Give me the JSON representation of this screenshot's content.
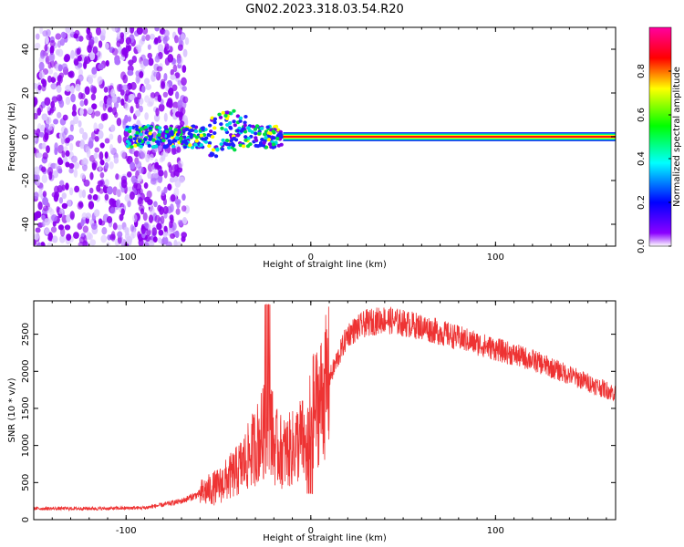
{
  "title": "GN02.2023.318.03.54.R20",
  "chart_data": [
    {
      "type": "heatmap",
      "xlabel": "Height of straight line (km)",
      "ylabel": "Frequency (Hz)",
      "xlim": [
        -150,
        165
      ],
      "ylim": [
        -50,
        50
      ],
      "x_ticks": [
        -100,
        0,
        100
      ],
      "y_ticks": [
        -40,
        -20,
        0,
        20,
        40
      ],
      "colorbar": {
        "label": "Normalized spectral amplitude",
        "range": [
          0,
          1
        ],
        "ticks": [
          "0.0",
          "0.2",
          "0.4",
          "0.6",
          "0.8"
        ],
        "colors": [
          "#ffffff",
          "#8b00ff",
          "#0000ff",
          "#00ffff",
          "#00ff00",
          "#ffff00",
          "#ff0000",
          "#ff00a0"
        ]
      },
      "features": {
        "noise_region_x": [
          -150,
          -75
        ],
        "scatter_region_x": [
          -100,
          -15
        ],
        "tone_start_x": -15,
        "tone_frequency_hz": 0
      }
    },
    {
      "type": "line",
      "xlabel": "Height of straight line (km)",
      "ylabel": "SNR (10 * v/v)",
      "xlim": [
        -150,
        165
      ],
      "ylim": [
        0,
        2950
      ],
      "x_ticks": [
        -100,
        0,
        100
      ],
      "y_ticks": [
        0,
        500,
        1000,
        1500,
        2000,
        2500
      ],
      "line_color": "#ee3333",
      "series": [
        {
          "x": [
            -150,
            -130,
            -110,
            -90,
            -80,
            -70,
            -60,
            -50,
            -45,
            -40,
            -35,
            -30,
            -25,
            -22,
            -20,
            -15,
            -10,
            -5,
            -2,
            0,
            5,
            10,
            15,
            20,
            30,
            40,
            50,
            60,
            80,
            100,
            120,
            140,
            165
          ],
          "values": [
            150,
            150,
            150,
            160,
            200,
            250,
            350,
            450,
            550,
            650,
            800,
            1000,
            1200,
            1400,
            1000,
            900,
            950,
            1100,
            900,
            1400,
            1600,
            1900,
            2200,
            2500,
            2650,
            2700,
            2650,
            2600,
            2450,
            2300,
            2150,
            1950,
            1700
          ]
        }
      ]
    }
  ]
}
